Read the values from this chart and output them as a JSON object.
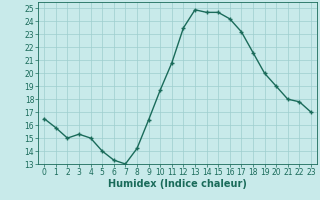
{
  "x": [
    0,
    1,
    2,
    3,
    4,
    5,
    6,
    7,
    8,
    9,
    10,
    11,
    12,
    13,
    14,
    15,
    16,
    17,
    18,
    19,
    20,
    21,
    22,
    23
  ],
  "y": [
    16.5,
    15.8,
    15.0,
    15.3,
    15.0,
    14.0,
    13.3,
    13.0,
    14.2,
    16.4,
    18.7,
    20.8,
    23.5,
    24.9,
    24.7,
    24.7,
    24.2,
    23.2,
    21.6,
    20.0,
    19.0,
    18.0,
    17.8,
    17.0
  ],
  "line_color": "#1a6b5a",
  "marker": "+",
  "bg_color": "#c8eaea",
  "grid_color": "#9ecece",
  "xlabel": "Humidex (Indice chaleur)",
  "xlim": [
    -0.5,
    23.5
  ],
  "ylim": [
    13,
    25.5
  ],
  "yticks": [
    13,
    14,
    15,
    16,
    17,
    18,
    19,
    20,
    21,
    22,
    23,
    24,
    25
  ],
  "xticks": [
    0,
    1,
    2,
    3,
    4,
    5,
    6,
    7,
    8,
    9,
    10,
    11,
    12,
    13,
    14,
    15,
    16,
    17,
    18,
    19,
    20,
    21,
    22,
    23
  ],
  "tick_label_color": "#1a6b5a",
  "tick_fontsize": 5.5,
  "xlabel_fontsize": 7.0,
  "linewidth": 1.0,
  "markersize": 3.5,
  "markeredgewidth": 1.0
}
